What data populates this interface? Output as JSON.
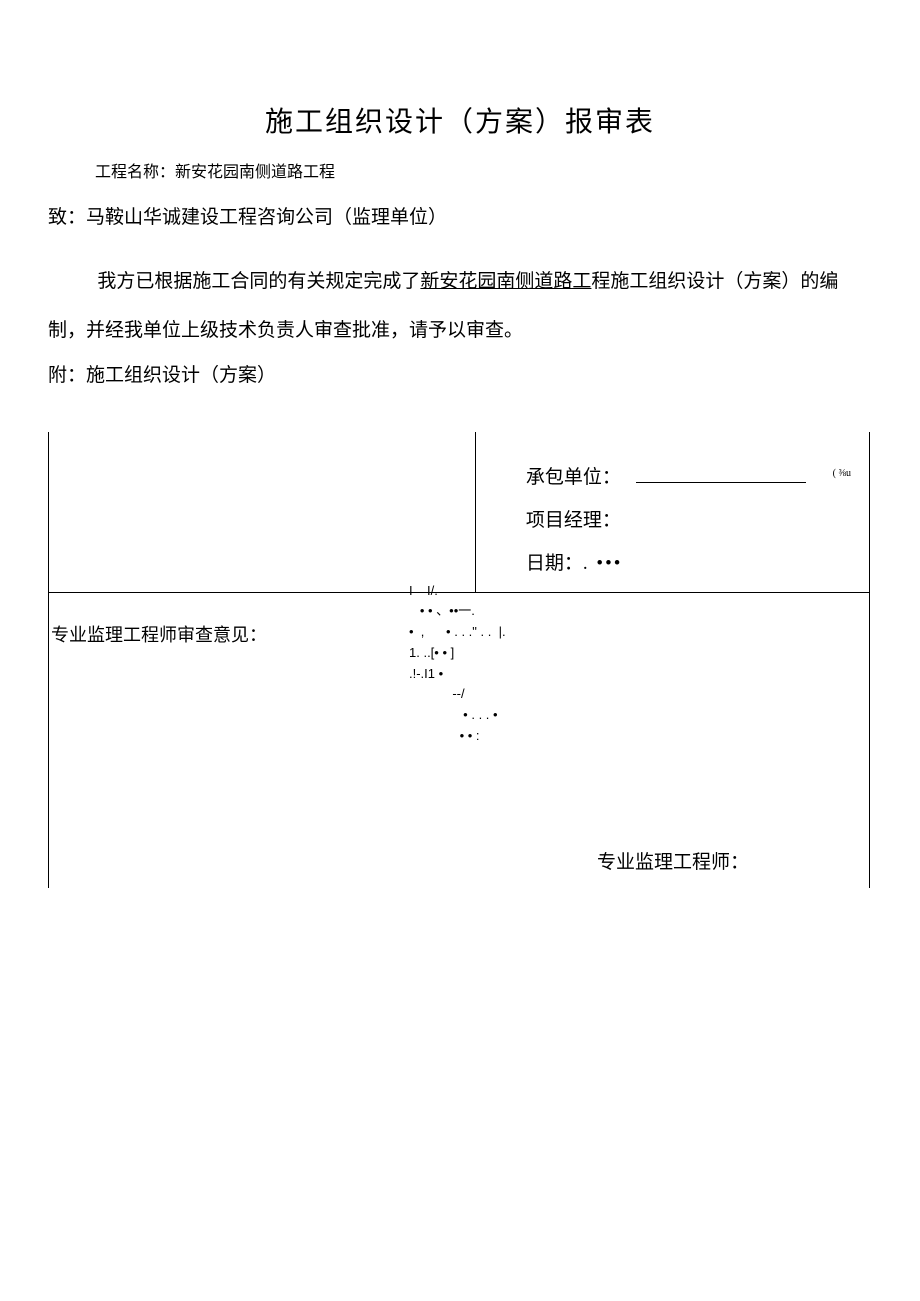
{
  "title": "施工组织设计（方案）报审表",
  "project_name_label": "工程名称：",
  "project_name_value": "新安花园南侧道路工程",
  "to_label": "致：",
  "to_value": "马鞍山华诚建设工程咨询公司（监理单位）",
  "body_prefix": "我方已根据施工合同的有关规定完成了",
  "body_underlined": "新安花园南侧道路工",
  "body_suffix": "程施工组织设计（方案）的编制，并经我单位上级技术负责人审查批准，请予以审查。",
  "attachment_label": "附：",
  "attachment_value": "施工组织设计（方案）",
  "contractor_label": "承包单位：",
  "contractor_note": "( ⅜u",
  "pm_label": "项目经理：",
  "date_label": "日期：",
  "date_dots": ". •••",
  "opinion_label": "专业监理工程师审查意见：",
  "scribble1": "I    I/.",
  "scribble2": "   • • 、••一.",
  "scribble3": "•  ,      • . . .\" . .  |.",
  "scribble4": "1. ..[• • ]",
  "scribble5": ".!-.I1 •",
  "scribble6": "            --/",
  "scribble7": "               • . . . •",
  "scribble8": "              • • :",
  "engineer_label": "专业监理工程师：",
  "colors": {
    "background": "#ffffff",
    "text": "#000000",
    "border": "#000000"
  },
  "fonts": {
    "title_size": 28,
    "body_size": 19,
    "small_size": 16,
    "tiny_size": 10
  }
}
